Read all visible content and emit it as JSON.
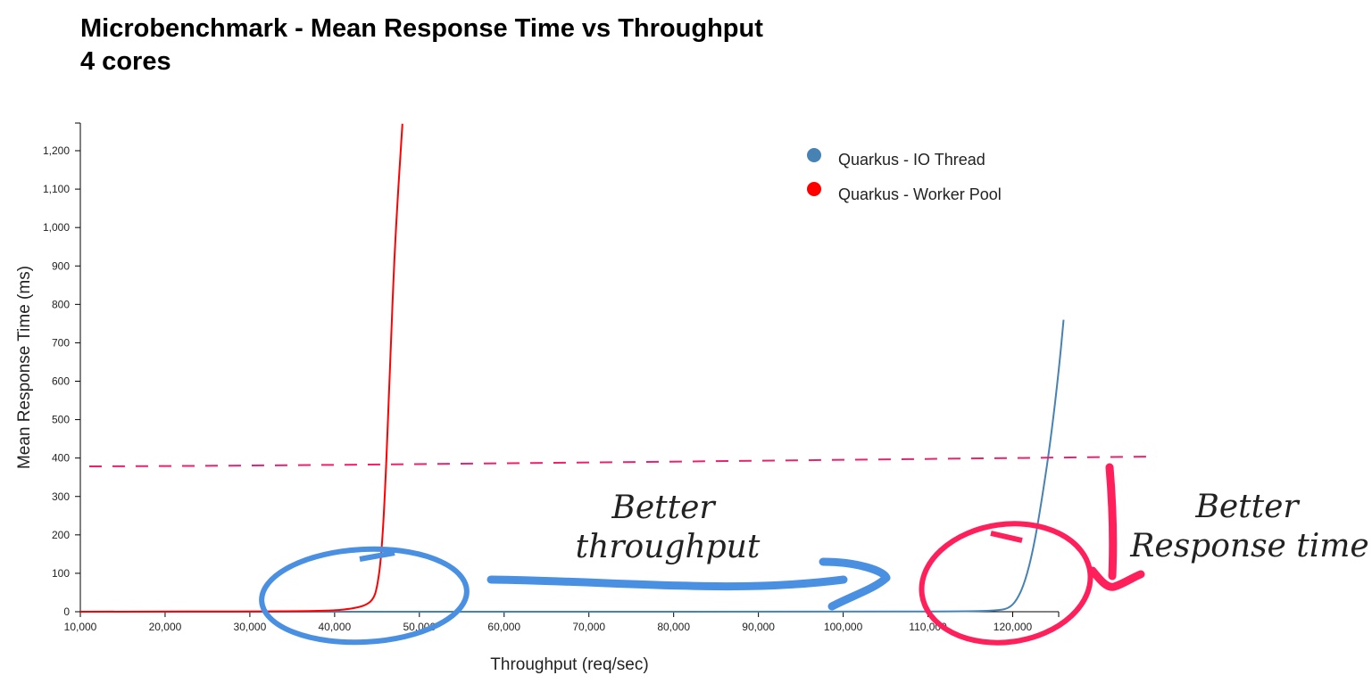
{
  "chart_data": {
    "type": "line",
    "title": "Microbenchmark - Mean Response Time vs Throughput",
    "subtitle": "4 cores",
    "xlabel": "Throughput (req/sec)",
    "ylabel": "Mean Response Time (ms)",
    "xlim": [
      10000,
      126000
    ],
    "ylim": [
      0,
      1270
    ],
    "x_ticks": [
      "10,000",
      "20,000",
      "30,000",
      "40,000",
      "50,000",
      "60,000",
      "70,000",
      "80,000",
      "90,000",
      "100,000",
      "110,000",
      "120,000"
    ],
    "x_tick_values": [
      10000,
      20000,
      30000,
      40000,
      50000,
      60000,
      70000,
      80000,
      90000,
      100000,
      110000,
      120000
    ],
    "y_ticks": [
      "0",
      "100",
      "200",
      "300",
      "400",
      "500",
      "600",
      "700",
      "800",
      "900",
      "1,000",
      "1,100",
      "1,200"
    ],
    "y_tick_values": [
      0,
      100,
      200,
      300,
      400,
      500,
      600,
      700,
      800,
      900,
      1000,
      1100,
      1200
    ],
    "legend_position": "top-right",
    "series": [
      {
        "name": "Quarkus - IO Thread",
        "color": "#4682b4",
        "x": [
          10000,
          60000,
          100000,
          115000,
          118000,
          119500,
          120500,
          121500,
          122500,
          123500,
          124500,
          125500,
          126000
        ],
        "y": [
          0,
          0,
          0,
          1,
          3,
          8,
          30,
          80,
          170,
          300,
          450,
          640,
          760
        ]
      },
      {
        "name": "Quarkus - Worker Pool",
        "color": "#ff0000",
        "x": [
          10000,
          35000,
          40000,
          42000,
          43500,
          44500,
          45000,
          45500,
          46000,
          46500,
          47000,
          47500,
          48000
        ],
        "y": [
          0,
          1,
          3,
          8,
          15,
          30,
          60,
          140,
          330,
          620,
          900,
          1100,
          1270
        ]
      }
    ],
    "annotations": [
      {
        "text": "Better throughput",
        "color": "#4a90e2"
      },
      {
        "text": "Better Response time",
        "color": "#ff1f5a"
      }
    ],
    "reference_line": {
      "style": "dashed",
      "color": "#e8226e",
      "y_start": 378,
      "y_end": 402
    }
  },
  "annotation_lines": {
    "throughput": [
      "Better",
      "throughput"
    ],
    "response": [
      "Better",
      "Response time"
    ]
  }
}
